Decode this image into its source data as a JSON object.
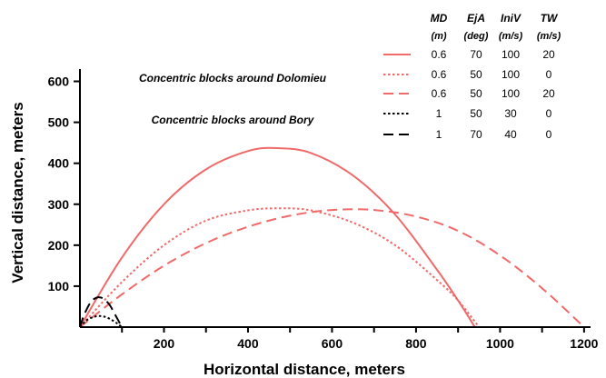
{
  "chart_data": {
    "type": "line",
    "xlabel": "Horizontal distance, meters",
    "ylabel": "Vertical distance, meters",
    "xlim": [
      0,
      1250
    ],
    "ylim": [
      0,
      630
    ],
    "xticks": [
      200,
      400,
      600,
      800,
      1000,
      1200
    ],
    "yticks": [
      100,
      200,
      300,
      400,
      500,
      600
    ],
    "grid": false,
    "legend_position": "top-right",
    "legend_headers": [
      "MD",
      "EjA",
      "IniV",
      "TW"
    ],
    "legend_units": [
      "(m)",
      "(deg)",
      "(m/s)",
      "(m/s)"
    ],
    "groups": [
      {
        "label": "Concentric blocks around Dolomieu",
        "color": "#f06a6a"
      },
      {
        "label": "Concentric blocks around Bory",
        "color": "#000000"
      }
    ],
    "series": [
      {
        "group": 0,
        "dash": "solid",
        "color": "#f06a6a",
        "params": [
          "0.6",
          "70",
          "100",
          "20"
        ],
        "x": [
          0,
          100,
          200,
          300,
          400,
          470,
          550,
          650,
          750,
          850,
          900,
          940
        ],
        "y": [
          0,
          170,
          300,
          385,
          430,
          437,
          425,
          370,
          275,
          140,
          65,
          0
        ]
      },
      {
        "group": 0,
        "dash": "dotted",
        "color": "#f06a6a",
        "params": [
          "0.6",
          "50",
          "100",
          "0"
        ],
        "x": [
          0,
          100,
          200,
          300,
          400,
          475,
          550,
          650,
          750,
          850,
          900,
          950
        ],
        "y": [
          0,
          110,
          200,
          260,
          285,
          290,
          285,
          255,
          200,
          115,
          65,
          0
        ]
      },
      {
        "group": 0,
        "dash": "dashed",
        "color": "#f06a6a",
        "params": [
          "0.6",
          "50",
          "100",
          "20"
        ],
        "x": [
          0,
          100,
          200,
          300,
          400,
          500,
          600,
          700,
          800,
          900,
          1000,
          1100,
          1200
        ],
        "y": [
          0,
          80,
          150,
          205,
          245,
          272,
          286,
          286,
          270,
          235,
          175,
          95,
          0
        ]
      },
      {
        "group": 1,
        "dash": "dotted",
        "color": "#000000",
        "params": [
          "1",
          "50",
          "30",
          "0"
        ],
        "x": [
          0,
          15,
          30,
          45,
          60,
          75,
          90,
          100
        ],
        "y": [
          0,
          16,
          24,
          27,
          25,
          18,
          8,
          0
        ]
      },
      {
        "group": 1,
        "dash": "dashed",
        "color": "#000000",
        "params": [
          "1",
          "70",
          "40",
          "0"
        ],
        "x": [
          0,
          10,
          25,
          40,
          55,
          70,
          85,
          100
        ],
        "y": [
          0,
          30,
          60,
          72,
          70,
          55,
          28,
          0
        ]
      }
    ]
  }
}
